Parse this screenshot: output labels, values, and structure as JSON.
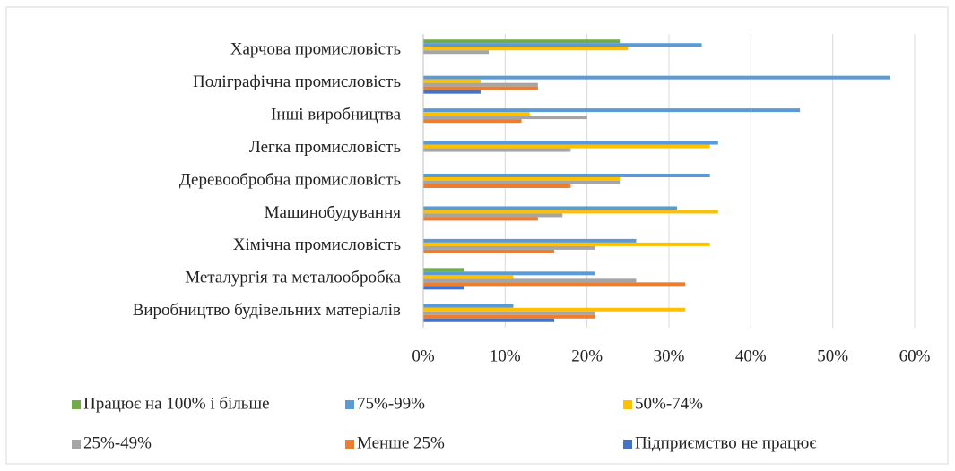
{
  "chart_data": {
    "type": "bar",
    "orientation": "horizontal",
    "categories": [
      "Харчова промисловість",
      "Поліграфічна промисловість",
      "Інші виробництва",
      "Легка промисловість",
      "Деревообробна промисловість",
      "Машинобудування",
      "Хімічна промисловість",
      "Металургія та металообробка",
      "Виробництво будівельних матеріалів"
    ],
    "series": [
      {
        "name": "Працює на 100% і більше",
        "color": "#70ad47",
        "values": [
          24,
          0,
          0,
          0,
          0,
          0,
          0,
          5,
          0
        ]
      },
      {
        "name": "75%-99%",
        "color": "#5b9bd5",
        "values": [
          34,
          57,
          46,
          36,
          35,
          31,
          26,
          21,
          11
        ]
      },
      {
        "name": "50%-74%",
        "color": "#ffc000",
        "values": [
          25,
          7,
          13,
          35,
          24,
          36,
          35,
          11,
          32
        ]
      },
      {
        "name": "25%-49%",
        "color": "#a5a5a5",
        "values": [
          8,
          14,
          20,
          18,
          24,
          17,
          21,
          26,
          21
        ]
      },
      {
        "name": "Менше 25%",
        "color": "#ed7d31",
        "values": [
          0,
          14,
          12,
          0,
          18,
          14,
          16,
          32,
          21
        ]
      },
      {
        "name": "Підприємство не працює",
        "color": "#4472c4",
        "values": [
          0,
          7,
          0,
          0,
          0,
          0,
          0,
          5,
          16
        ]
      }
    ],
    "xlim": [
      0,
      60
    ],
    "xticks": [
      {
        "value": 0,
        "label": "0%"
      },
      {
        "value": 10,
        "label": "10%"
      },
      {
        "value": 20,
        "label": "20%"
      },
      {
        "value": 30,
        "label": "30%"
      },
      {
        "value": 40,
        "label": "40%"
      },
      {
        "value": 50,
        "label": "50%"
      },
      {
        "value": 60,
        "label": "60%"
      }
    ],
    "grid": true,
    "legend": "bottom"
  }
}
